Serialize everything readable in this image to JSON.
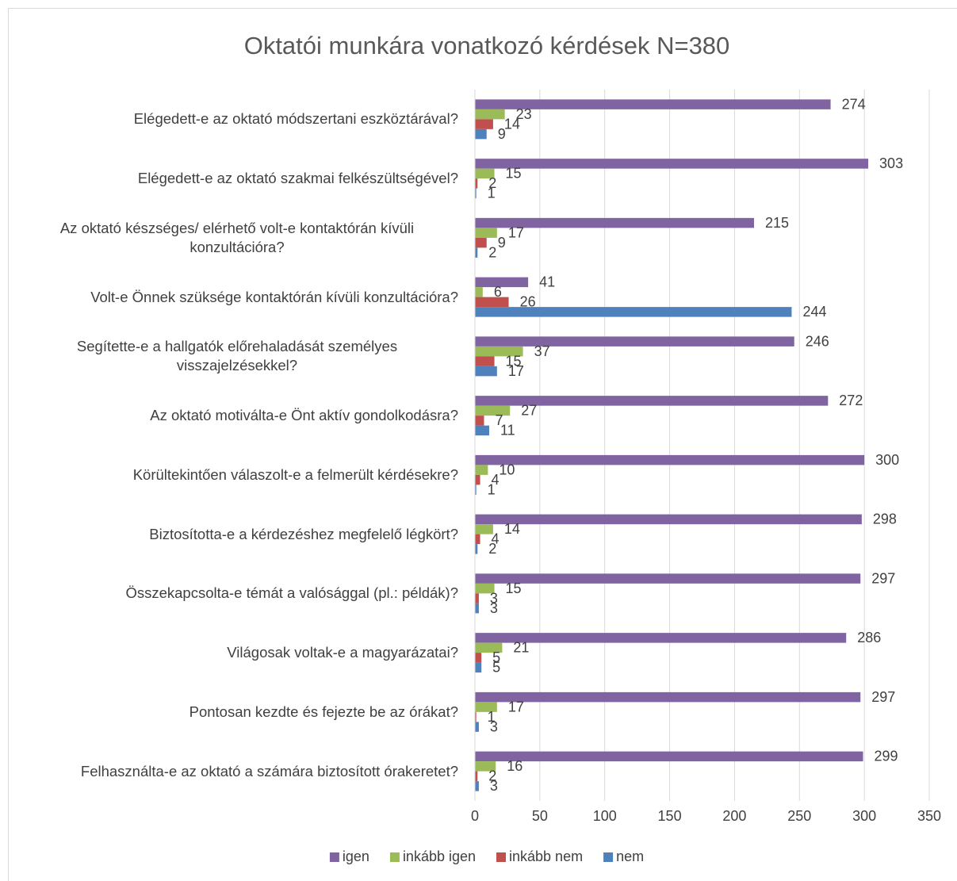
{
  "chart_data": {
    "type": "hbar",
    "title": "Oktatói munkára vonatkozó kérdések N=380",
    "categories": [
      "Elégedett-e az oktató módszertani eszköztárával?",
      "Elégedett-e az oktató szakmai felkészültségével?",
      "Az oktató készséges/ elérhető volt-e kontaktórán kívüli konzultációra?",
      "Volt-e Önnek szüksége kontaktórán kívüli konzultációra?",
      "Segítette-e a hallgatók előrehaladását személyes visszajelzésekkel?",
      "Az oktató motiválta-e Önt aktív gondolkodásra?",
      "Körültekintően válaszolt-e a felmerült kérdésekre?",
      "Biztosította-e a kérdezéshez megfelelő légkört?",
      "Összekapcsolta-e témát a valósággal (pl.: példák)?",
      "Világosak voltak-e a magyarázatai?",
      "Pontosan kezdte és fejezte be az órákat?",
      "Felhasználta-e az oktató a számára biztosított órakeretet?"
    ],
    "series": [
      {
        "name": "igen",
        "color": "#8064a2",
        "values": [
          274,
          303,
          215,
          41,
          246,
          272,
          300,
          298,
          297,
          286,
          297,
          299
        ]
      },
      {
        "name": "inkább igen",
        "color": "#9bbb59",
        "values": [
          23,
          15,
          17,
          6,
          37,
          27,
          10,
          14,
          15,
          21,
          17,
          16
        ]
      },
      {
        "name": "inkább nem",
        "color": "#c0504d",
        "values": [
          14,
          2,
          9,
          26,
          15,
          7,
          4,
          4,
          3,
          5,
          1,
          2
        ]
      },
      {
        "name": "nem",
        "color": "#4f81bd",
        "values": [
          9,
          1,
          2,
          244,
          17,
          11,
          1,
          2,
          3,
          5,
          3,
          3
        ]
      }
    ],
    "xlim": [
      0,
      350
    ],
    "xticks": [
      0,
      50,
      100,
      150,
      200,
      250,
      300,
      350
    ],
    "grid": true,
    "legend": "bottom"
  }
}
